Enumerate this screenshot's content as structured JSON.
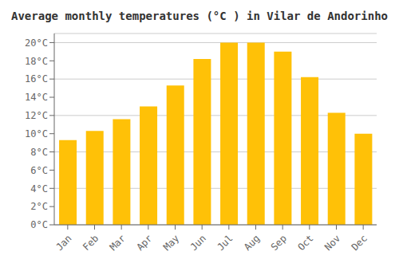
{
  "chart_data": {
    "type": "bar",
    "title": "Average monthly temperatures (°C ) in Vilar de Andorinho",
    "categories": [
      "Jan",
      "Feb",
      "Mar",
      "Apr",
      "May",
      "Jun",
      "Jul",
      "Aug",
      "Sep",
      "Oct",
      "Nov",
      "Dec"
    ],
    "values": [
      9.3,
      10.3,
      11.6,
      13.0,
      15.3,
      18.2,
      20.0,
      20.0,
      19.0,
      16.2,
      12.3,
      10.0
    ],
    "color": "#FFC107",
    "ylim": [
      0,
      21
    ],
    "yticks": [
      {
        "value": 0,
        "label": "0°C"
      },
      {
        "value": 2,
        "label": "2°C"
      },
      {
        "value": 4,
        "label": "4°C"
      },
      {
        "value": 6,
        "label": "6°C"
      },
      {
        "value": 8,
        "label": "8°C"
      },
      {
        "value": 10,
        "label": "10°C"
      },
      {
        "value": 12,
        "label": "12°C"
      },
      {
        "value": 14,
        "label": "14°C"
      },
      {
        "value": 16,
        "label": "16°C"
      },
      {
        "value": 18,
        "label": "18°C"
      },
      {
        "value": 20,
        "label": "20°C"
      }
    ],
    "grid": true
  }
}
